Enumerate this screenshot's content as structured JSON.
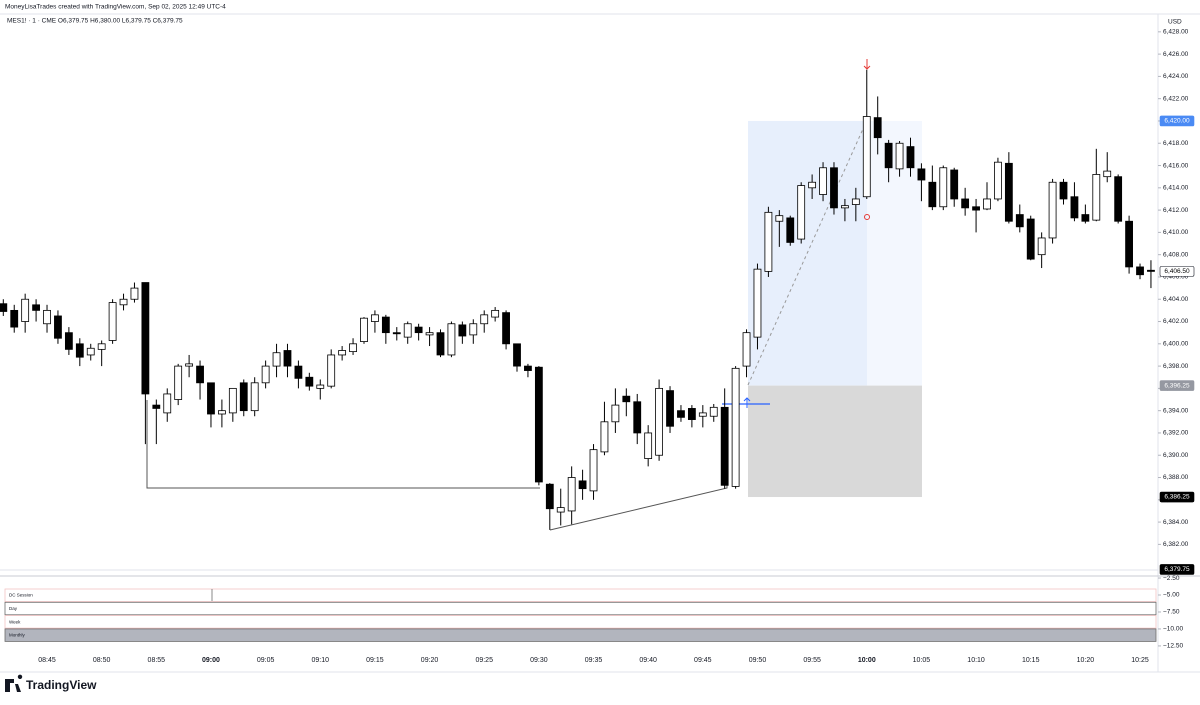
{
  "header": {
    "credit": "MoneyLisaTrades created with TradingView.com, Sep 02, 2025 12:49 UTC-4",
    "symbol": "MES1! · 1 · CME  O6,379.75  H6,380.00  L6,379.75  C6,379.75"
  },
  "footer": {
    "brand": "TradingView"
  },
  "chart_data": {
    "type": "candlestick",
    "currency": "USD",
    "up_color": "#ffffff",
    "down_color": "#000000",
    "wick_color": "#000000",
    "categories": [
      null,
      null,
      null,
      null,
      "08:45",
      null,
      null,
      null,
      null,
      "08:50",
      null,
      null,
      null,
      null,
      "08:55",
      null,
      null,
      null,
      null,
      "09:00",
      null,
      null,
      null,
      null,
      "09:05",
      null,
      null,
      null,
      null,
      "09:10",
      null,
      null,
      null,
      null,
      "09:15",
      null,
      null,
      null,
      null,
      "09:20",
      null,
      null,
      null,
      null,
      "09:25",
      null,
      null,
      null,
      null,
      "09:30",
      null,
      null,
      null,
      null,
      "09:35",
      null,
      null,
      null,
      null,
      "09:40",
      null,
      null,
      null,
      null,
      "09:45",
      null,
      null,
      null,
      null,
      "09:50",
      null,
      null,
      null,
      null,
      "09:55",
      null,
      null,
      null,
      null,
      "10:00",
      null,
      null,
      null,
      null,
      "10:05",
      null,
      null,
      null,
      null,
      "10:10",
      null,
      null,
      null,
      null,
      "10:15",
      null,
      null,
      null,
      null,
      "10:20",
      null,
      null,
      null,
      null,
      "10:25",
      null
    ],
    "ohlc": [
      [
        6403.6,
        6404,
        6402.5,
        6402.9
      ],
      [
        6403,
        6403.5,
        6401,
        6401.5
      ],
      [
        6402,
        6404.5,
        6401,
        6404
      ],
      [
        6403.5,
        6404,
        6402,
        6403
      ],
      [
        6401.8,
        6403.5,
        6401,
        6403
      ],
      [
        6402.5,
        6403,
        6400,
        6400.5
      ],
      [
        6401,
        6401.5,
        6399,
        6399.5
      ],
      [
        6400,
        6400.5,
        6398,
        6398.8
      ],
      [
        6399,
        6400,
        6398.5,
        6399.6
      ],
      [
        6399.5,
        6400.3,
        6398,
        6400
      ],
      [
        6400.3,
        6404,
        6400,
        6403.7
      ],
      [
        6403.5,
        6404.5,
        6403,
        6404
      ],
      [
        6404,
        6405.5,
        6403.7,
        6405
      ],
      [
        6405.5,
        6405.5,
        6391,
        6395.5
      ],
      [
        6394.5,
        6395,
        6391,
        6394.2
      ],
      [
        6393.8,
        6396,
        6393,
        6395.5
      ],
      [
        6395,
        6398.2,
        6394.5,
        6398
      ],
      [
        6398,
        6399,
        6397,
        6398.2
      ],
      [
        6398,
        6398.5,
        6395,
        6396.5
      ],
      [
        6396.5,
        6396.5,
        6392.5,
        6393.7
      ],
      [
        6393.7,
        6395,
        6392.5,
        6394
      ],
      [
        6393.8,
        6396,
        6393,
        6396
      ],
      [
        6396.5,
        6396.8,
        6393.5,
        6394
      ],
      [
        6394,
        6397,
        6393.5,
        6396.5
      ],
      [
        6396.5,
        6398.5,
        6396,
        6398
      ],
      [
        6398,
        6400,
        6397,
        6399.2
      ],
      [
        6399.4,
        6400,
        6397,
        6398
      ],
      [
        6398,
        6398.5,
        6396,
        6396.9
      ],
      [
        6397,
        6397.4,
        6395.8,
        6396.2
      ],
      [
        6396,
        6396.8,
        6395,
        6396.3
      ],
      [
        6396.2,
        6399.5,
        6396,
        6399
      ],
      [
        6399,
        6399.8,
        6398.5,
        6399.4
      ],
      [
        6399.3,
        6400.5,
        6399,
        6400
      ],
      [
        6400.2,
        6402.4,
        6400,
        6402.3
      ],
      [
        6402,
        6403,
        6401,
        6402.6
      ],
      [
        6402.4,
        6402.6,
        6400,
        6401
      ],
      [
        6401,
        6401.5,
        6400.3,
        6400.9
      ],
      [
        6400.6,
        6402,
        6400,
        6401.8
      ],
      [
        6401.5,
        6401.8,
        6400.3,
        6401
      ],
      [
        6400.8,
        6401.5,
        6399.8,
        6401
      ],
      [
        6401,
        6401.3,
        6398.8,
        6399
      ],
      [
        6399,
        6402,
        6398.8,
        6401.8
      ],
      [
        6401.7,
        6402,
        6400,
        6400.7
      ],
      [
        6400.8,
        6402.2,
        6400,
        6401.8
      ],
      [
        6401.8,
        6403,
        6401,
        6402.6
      ],
      [
        6402.4,
        6403.3,
        6402,
        6403
      ],
      [
        6402.8,
        6403,
        6399.5,
        6400
      ],
      [
        6400,
        6400,
        6397.5,
        6398
      ],
      [
        6398,
        6398.2,
        6397,
        6397.6
      ],
      [
        6397.9,
        6398,
        6387.3,
        6387.6
      ],
      [
        6387.4,
        6387.5,
        6383.3,
        6385.2
      ],
      [
        6384.9,
        6387,
        6383.7,
        6385.3
      ],
      [
        6385,
        6389,
        6383.8,
        6388
      ],
      [
        6387.7,
        6388.7,
        6386,
        6387
      ],
      [
        6386.8,
        6391,
        6386,
        6390.5
      ],
      [
        6390.3,
        6394.8,
        6390,
        6393
      ],
      [
        6393,
        6396,
        6392,
        6394.5
      ],
      [
        6395.3,
        6396,
        6393.5,
        6394.8
      ],
      [
        6394.8,
        6395.5,
        6391,
        6392
      ],
      [
        6389.7,
        6392.7,
        6389,
        6392
      ],
      [
        6390,
        6396.8,
        6389.5,
        6396
      ],
      [
        6395.8,
        6396.2,
        6392,
        6392.6
      ],
      [
        6394,
        6394.5,
        6393,
        6393.4
      ],
      [
        6394.2,
        6394.5,
        6392.5,
        6393.2
      ],
      [
        6393.5,
        6394.5,
        6392.5,
        6393.8
      ],
      [
        6393.5,
        6394.6,
        6393,
        6394.3
      ],
      [
        6394.3,
        6396,
        6387,
        6387.3
      ],
      [
        6387.2,
        6398,
        6387,
        6397.8
      ],
      [
        6398,
        6401.3,
        6397,
        6401
      ],
      [
        6400.6,
        6407.2,
        6399.5,
        6406.7
      ],
      [
        6406.5,
        6412.3,
        6406,
        6411.8
      ],
      [
        6411,
        6412,
        6408.7,
        6411.5
      ],
      [
        6411.3,
        6411.5,
        6408.8,
        6409.1
      ],
      [
        6409.4,
        6414.5,
        6409,
        6414.2
      ],
      [
        6414,
        6415.2,
        6413,
        6414.5
      ],
      [
        6413.4,
        6416.3,
        6412.8,
        6415.8
      ],
      [
        6415.8,
        6416.3,
        6411.6,
        6412.2
      ],
      [
        6412.2,
        6413,
        6411,
        6412.4
      ],
      [
        6412.5,
        6414,
        6411,
        6413
      ],
      [
        6413.2,
        6424.6,
        6413,
        6420.4
      ],
      [
        6420.3,
        6422.2,
        6417,
        6418.5
      ],
      [
        6418,
        6418.3,
        6414.5,
        6415.8
      ],
      [
        6415.7,
        6418.2,
        6415,
        6418
      ],
      [
        6417.7,
        6418.5,
        6415,
        6415.8
      ],
      [
        6415.7,
        6416.2,
        6412.8,
        6414.7
      ],
      [
        6414.5,
        6416,
        6412,
        6412.3
      ],
      [
        6412.3,
        6416,
        6412,
        6415.8
      ],
      [
        6415.6,
        6415.8,
        6412.3,
        6413
      ],
      [
        6413,
        6414,
        6411.5,
        6412.2
      ],
      [
        6412.3,
        6413,
        6410,
        6412
      ],
      [
        6412.1,
        6414.5,
        6412,
        6413
      ],
      [
        6413,
        6416.7,
        6412.8,
        6416.3
      ],
      [
        6416.2,
        6417.2,
        6410.8,
        6411
      ],
      [
        6411.6,
        6412.5,
        6410,
        6410.5
      ],
      [
        6411.2,
        6411.5,
        6407.5,
        6407.6
      ],
      [
        6408,
        6410,
        6406.8,
        6409.5
      ],
      [
        6409.5,
        6414.8,
        6409,
        6414.5
      ],
      [
        6414.5,
        6414.8,
        6412.5,
        6413
      ],
      [
        6413.2,
        6414.5,
        6411,
        6411.3
      ],
      [
        6411.6,
        6412.5,
        6410.8,
        6411
      ],
      [
        6411.1,
        6417.5,
        6411,
        6415.2
      ],
      [
        6415,
        6417.2,
        6414.5,
        6415.5
      ],
      [
        6415,
        6415.2,
        6410.8,
        6411
      ],
      [
        6411,
        6411.5,
        6406.3,
        6406.9
      ],
      [
        6406.9,
        6407.2,
        6405.8,
        6406.2
      ],
      [
        6406.6,
        6407.5,
        6405,
        6406.5
      ]
    ],
    "ylim": [
      6379.7,
      6429.6
    ],
    "yticks": [
      {
        "value": 6382,
        "label": "6,382.00"
      },
      {
        "value": 6384,
        "label": "6,384.00"
      },
      {
        "value": 6386,
        "label": "6,386.00"
      },
      {
        "value": 6388,
        "label": "6,388.00"
      },
      {
        "value": 6390,
        "label": "6,390.00"
      },
      {
        "value": 6392,
        "label": "6,392.00"
      },
      {
        "value": 6394,
        "label": "6,394.00"
      },
      {
        "value": 6396,
        "label": "6,396.00"
      },
      {
        "value": 6398,
        "label": "6,398.00"
      },
      {
        "value": 6400,
        "label": "6,400.00"
      },
      {
        "value": 6402,
        "label": "6,402.00"
      },
      {
        "value": 6404,
        "label": "6,404.00"
      },
      {
        "value": 6406,
        "label": "6,406.00"
      },
      {
        "value": 6408,
        "label": "6,408.00"
      },
      {
        "value": 6410,
        "label": "6,410.00"
      },
      {
        "value": 6412,
        "label": "6,412.00"
      },
      {
        "value": 6414,
        "label": "6,414.00"
      },
      {
        "value": 6416,
        "label": "6,416.00"
      },
      {
        "value": 6418,
        "label": "6,418.00"
      },
      {
        "value": 6420,
        "label": "6,420.00"
      },
      {
        "value": 6422,
        "label": "6,422.00"
      },
      {
        "value": 6424,
        "label": "6,424.00"
      },
      {
        "value": 6426,
        "label": "6,426.00"
      },
      {
        "value": 6428,
        "label": "6,428.00"
      }
    ],
    "price_labels": [
      {
        "value": 6420,
        "label": "6,420.00",
        "bg": "#4a8af4",
        "fg": "#ffffff"
      },
      {
        "value": 6406.5,
        "label": "6,406.50",
        "bg": "#ffffff",
        "fg": "#000000"
      },
      {
        "value": 6396.25,
        "label": "6,396.25",
        "bg": "#9598a1",
        "fg": "#ffffff"
      },
      {
        "value": 6386.25,
        "label": "6,386.25",
        "bg": "#000000",
        "fg": "#ffffff"
      },
      {
        "value": 6379.75,
        "label": "6,379.75",
        "bg": "#000000",
        "fg": "#ffffff"
      }
    ],
    "lower_pane": {
      "rows": [
        "DC Session",
        "Day",
        "Week",
        "Monthly"
      ],
      "ylim": [
        -2.2,
        -13.1
      ],
      "yticks": [
        {
          "value": -2.5,
          "label": "−2.50"
        },
        {
          "value": -5,
          "label": "−5.00"
        },
        {
          "value": -7.5,
          "label": "−7.50"
        },
        {
          "value": -10,
          "label": "−10.00"
        },
        {
          "value": -12.5,
          "label": "−12.50"
        }
      ]
    }
  }
}
